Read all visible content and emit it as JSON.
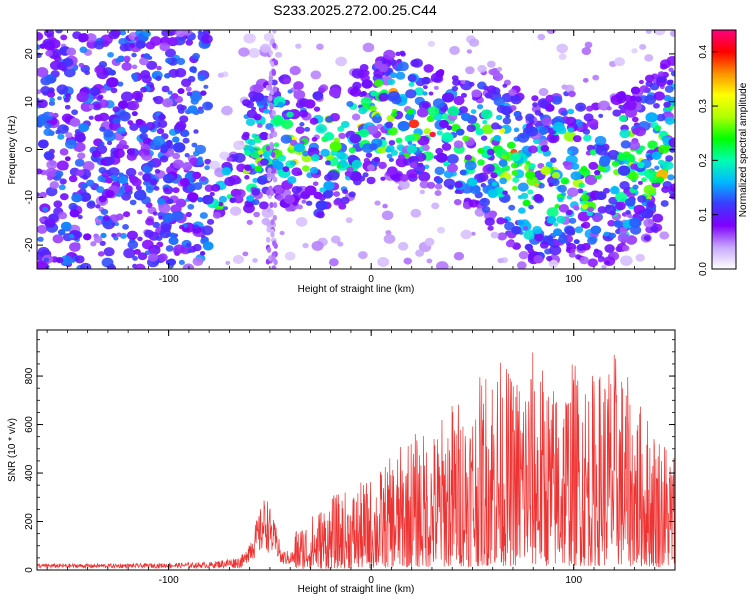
{
  "title": "S233.2025.272.00.25.C44",
  "chart_data": [
    {
      "type": "heatmap",
      "xlabel": "Height of straight line (km)",
      "ylabel": "Frequency (Hz)",
      "xlim": [
        -165,
        150
      ],
      "ylim": [
        -25,
        25
      ],
      "x_ticks": [
        -100,
        0,
        100
      ],
      "y_ticks": [
        -20,
        -10,
        0,
        10,
        20
      ],
      "colorbar": {
        "label": "Normalized spectral amplitude",
        "range": [
          0,
          0.44
        ],
        "ticks": [
          "0.0",
          "0.1",
          "0.2",
          "0.3",
          "0.4"
        ],
        "colors": [
          "#ffffff",
          "#c8a8ff",
          "#7f00ff",
          "#3b3bff",
          "#00b8ff",
          "#00ffb0",
          "#00ff00",
          "#b0ff00",
          "#ffff00",
          "#ff9000",
          "#ff0000",
          "#ff0080"
        ]
      },
      "ridge": {
        "description": "",
        "x": [
          -82,
          -72,
          -62,
          -50,
          -40,
          -30,
          -20,
          -10,
          0,
          10,
          20,
          30,
          40,
          50,
          60,
          70,
          80,
          90,
          100,
          110,
          120,
          130,
          140,
          148
        ],
        "y": [
          -15,
          -9,
          -3,
          3,
          1,
          -1,
          0,
          2,
          6,
          7,
          7,
          4,
          2,
          1,
          0,
          -4,
          -6,
          -6,
          -5,
          -8,
          -6,
          -4,
          -1,
          3
        ]
      }
    },
    {
      "type": "line",
      "xlabel": "Height of straight line (km)",
      "ylabel": "SNR (10 * v/v)",
      "xlim": [
        -165,
        150
      ],
      "ylim": [
        0,
        990
      ],
      "x_ticks": [
        -100,
        0,
        100
      ],
      "y_ticks": [
        0,
        200,
        400,
        600,
        800
      ],
      "series": [
        {
          "color": "#ee3333",
          "envelope": {
            "x": [
              -165,
              -120,
              -80,
              -65,
              -60,
              -56,
              -52,
              -48,
              -44,
              -40,
              -30,
              -20,
              -10,
              0,
              10,
              20,
              30,
              40,
              50,
              60,
              70,
              80,
              90,
              100,
              110,
              120,
              130,
              140,
              150
            ],
            "y": [
              30,
              30,
              40,
              80,
              130,
              220,
              320,
              200,
              130,
              150,
              220,
              300,
              330,
              380,
              460,
              560,
              560,
              700,
              720,
              900,
              800,
              900,
              760,
              860,
              800,
              900,
              720,
              600,
              500
            ]
          }
        }
      ]
    }
  ]
}
